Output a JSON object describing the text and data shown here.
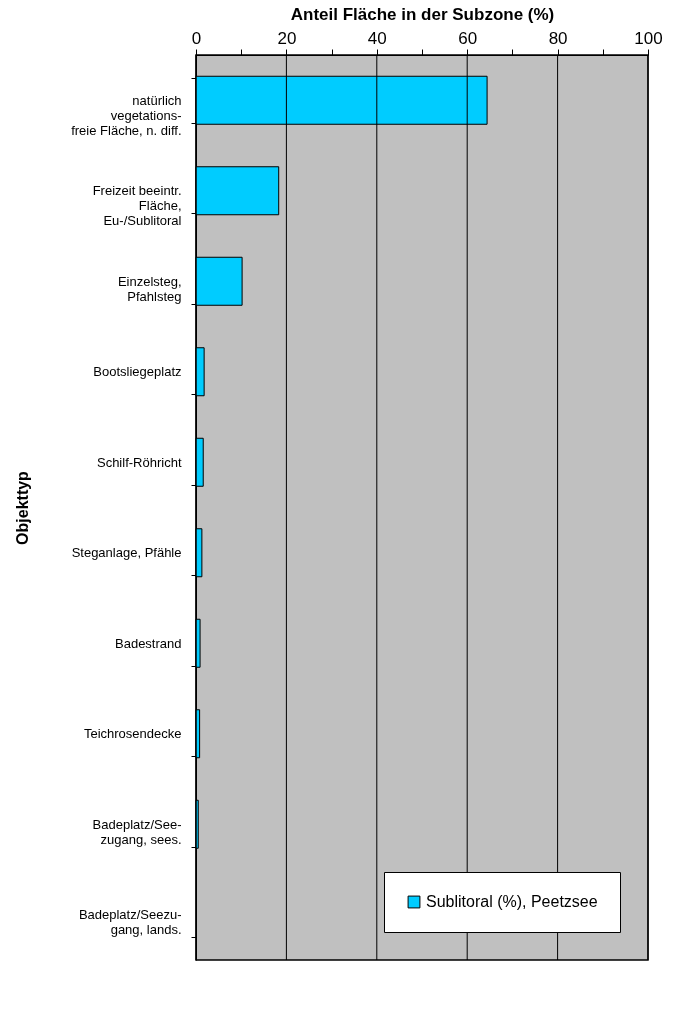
{
  "chart_data": {
    "type": "bar",
    "orientation": "horizontal",
    "xlabel": "Anteil Fläche in der Subzone (%)",
    "ylabel": "Objekttyp",
    "categories": [
      "natürlich\nvegetations-\nfreie Fläche, n. diff.",
      "Freizeit beeintr.\nFläche,\nEu-/Sublitoral",
      "Einzelsteg,\nPfahlsteg",
      "Bootsliegeplatz",
      "Schilf-Röhricht",
      "Steganlage, Pfähle",
      "Badestrand",
      "Teichrosendecke",
      "Badeplatz/See-\nzugang, sees.",
      "Badeplatz/Seezu-\ngang, lands."
    ],
    "series": [
      {
        "name": "Sublitoral (%), Peetzsee",
        "color": "#00ccff",
        "values": [
          64.4,
          18.3,
          10.2,
          1.8,
          1.6,
          1.3,
          0.9,
          0.8,
          0.5,
          0
        ]
      }
    ],
    "xlim": [
      0,
      100
    ],
    "xticks": [
      0,
      {
        "value": 10,
        "label": null
      },
      20,
      {
        "value": 30,
        "label": null
      },
      40,
      {
        "value": 50,
        "label": null
      },
      60,
      {
        "value": 70,
        "label": null
      },
      80,
      {
        "value": 90,
        "label": null
      },
      100
    ],
    "grid": "x",
    "legend": "bottom right"
  }
}
